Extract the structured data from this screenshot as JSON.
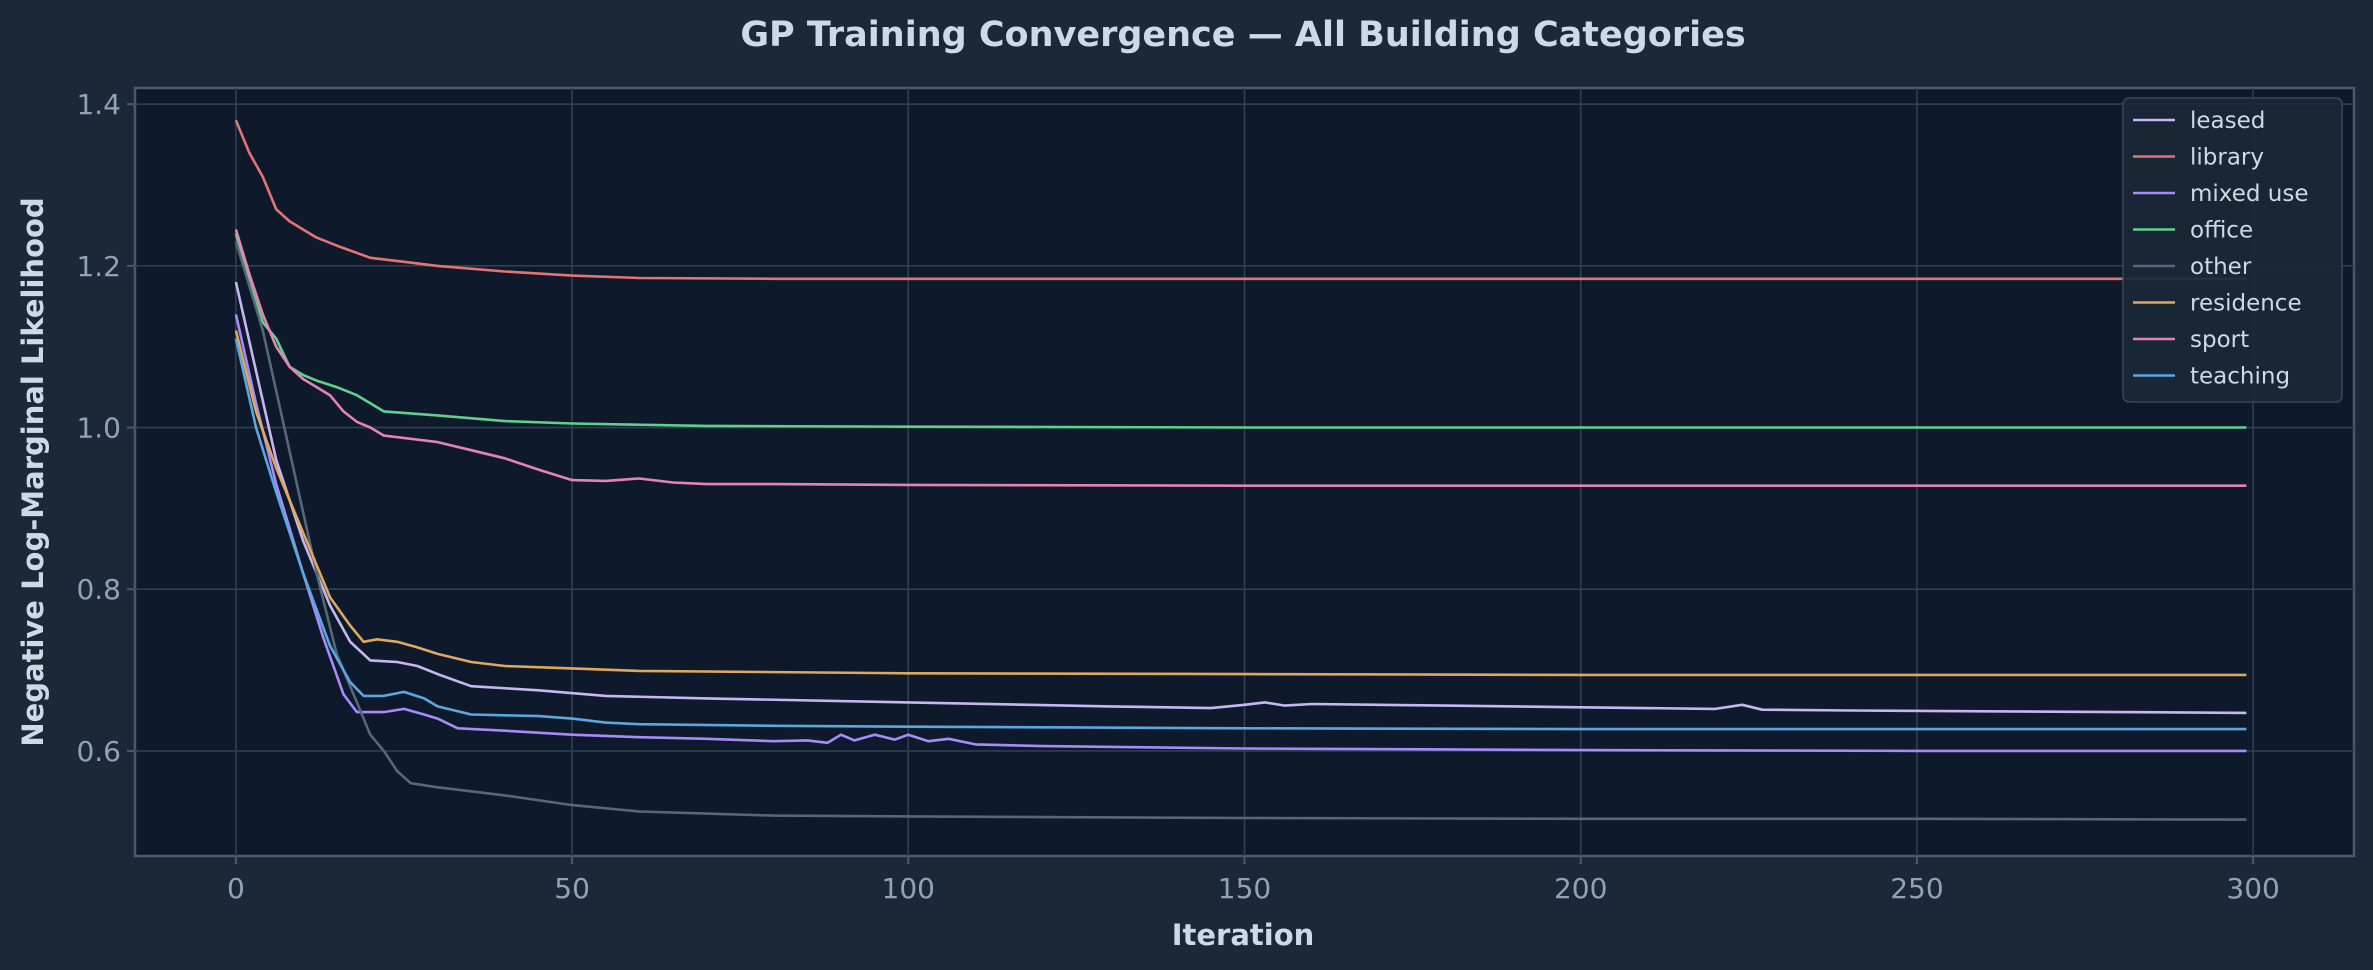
{
  "chart_data": {
    "type": "line",
    "title": "GP Training Convergence — All Building Categories",
    "xlabel": "Iteration",
    "ylabel": "Negative Log-Marginal Likelihood",
    "xlim": [
      -15,
      315
    ],
    "ylim": [
      0.47,
      1.42
    ],
    "xticks": [
      0,
      50,
      100,
      150,
      200,
      250,
      300
    ],
    "yticks": [
      0.6,
      0.8,
      1.0,
      1.2,
      1.4
    ],
    "xtick_labels": [
      "0",
      "50",
      "100",
      "150",
      "200",
      "250",
      "300"
    ],
    "ytick_labels": [
      "0.6",
      "0.8",
      "1.0",
      "1.2",
      "1.4"
    ],
    "grid": true,
    "legend_position": "top-right",
    "series": [
      {
        "name": "leased",
        "color": "#c6b6f2",
        "points": [
          [
            0,
            1.18
          ],
          [
            3,
            1.07
          ],
          [
            6,
            0.96
          ],
          [
            10,
            0.86
          ],
          [
            14,
            0.78
          ],
          [
            17,
            0.735
          ],
          [
            20,
            0.712
          ],
          [
            24,
            0.71
          ],
          [
            27,
            0.705
          ],
          [
            30,
            0.695
          ],
          [
            35,
            0.68
          ],
          [
            45,
            0.675
          ],
          [
            55,
            0.668
          ],
          [
            70,
            0.665
          ],
          [
            100,
            0.66
          ],
          [
            130,
            0.655
          ],
          [
            145,
            0.653
          ],
          [
            150,
            0.657
          ],
          [
            153,
            0.66
          ],
          [
            156,
            0.656
          ],
          [
            160,
            0.658
          ],
          [
            170,
            0.657
          ],
          [
            180,
            0.656
          ],
          [
            200,
            0.654
          ],
          [
            220,
            0.652
          ],
          [
            224,
            0.657
          ],
          [
            227,
            0.651
          ],
          [
            240,
            0.65
          ],
          [
            260,
            0.649
          ],
          [
            280,
            0.648
          ],
          [
            299,
            0.647
          ]
        ]
      },
      {
        "name": "library",
        "color": "#e57373",
        "points": [
          [
            0,
            1.38
          ],
          [
            2,
            1.34
          ],
          [
            4,
            1.31
          ],
          [
            6,
            1.27
          ],
          [
            8,
            1.255
          ],
          [
            10,
            1.245
          ],
          [
            12,
            1.235
          ],
          [
            15,
            1.225
          ],
          [
            20,
            1.21
          ],
          [
            25,
            1.205
          ],
          [
            30,
            1.2
          ],
          [
            40,
            1.193
          ],
          [
            50,
            1.188
          ],
          [
            60,
            1.185
          ],
          [
            80,
            1.184
          ],
          [
            100,
            1.184
          ],
          [
            150,
            1.184
          ],
          [
            200,
            1.184
          ],
          [
            250,
            1.184
          ],
          [
            299,
            1.184
          ]
        ]
      },
      {
        "name": "mixed use",
        "color": "#a78bfa",
        "points": [
          [
            0,
            1.14
          ],
          [
            3,
            1.03
          ],
          [
            6,
            0.93
          ],
          [
            10,
            0.82
          ],
          [
            13,
            0.74
          ],
          [
            16,
            0.67
          ],
          [
            18,
            0.648
          ],
          [
            22,
            0.648
          ],
          [
            25,
            0.652
          ],
          [
            28,
            0.645
          ],
          [
            30,
            0.64
          ],
          [
            33,
            0.628
          ],
          [
            40,
            0.625
          ],
          [
            50,
            0.62
          ],
          [
            60,
            0.617
          ],
          [
            70,
            0.615
          ],
          [
            80,
            0.612
          ],
          [
            85,
            0.613
          ],
          [
            88,
            0.61
          ],
          [
            90,
            0.62
          ],
          [
            92,
            0.613
          ],
          [
            95,
            0.62
          ],
          [
            98,
            0.614
          ],
          [
            100,
            0.62
          ],
          [
            103,
            0.612
          ],
          [
            106,
            0.615
          ],
          [
            110,
            0.608
          ],
          [
            120,
            0.606
          ],
          [
            150,
            0.603
          ],
          [
            200,
            0.601
          ],
          [
            250,
            0.6
          ],
          [
            299,
            0.6
          ]
        ]
      },
      {
        "name": "office",
        "color": "#5fd18b",
        "points": [
          [
            0,
            1.24
          ],
          [
            2,
            1.18
          ],
          [
            4,
            1.13
          ],
          [
            6,
            1.11
          ],
          [
            8,
            1.075
          ],
          [
            10,
            1.065
          ],
          [
            12,
            1.058
          ],
          [
            15,
            1.05
          ],
          [
            18,
            1.04
          ],
          [
            20,
            1.03
          ],
          [
            22,
            1.02
          ],
          [
            30,
            1.015
          ],
          [
            40,
            1.008
          ],
          [
            50,
            1.005
          ],
          [
            70,
            1.002
          ],
          [
            100,
            1.001
          ],
          [
            150,
            1.0
          ],
          [
            200,
            1.0
          ],
          [
            299,
            1.0
          ]
        ]
      },
      {
        "name": "other",
        "color": "#566778",
        "points": [
          [
            0,
            1.23
          ],
          [
            4,
            1.12
          ],
          [
            8,
            0.97
          ],
          [
            12,
            0.82
          ],
          [
            15,
            0.72
          ],
          [
            18,
            0.66
          ],
          [
            20,
            0.62
          ],
          [
            22,
            0.6
          ],
          [
            24,
            0.575
          ],
          [
            26,
            0.56
          ],
          [
            30,
            0.555
          ],
          [
            35,
            0.55
          ],
          [
            40,
            0.545
          ],
          [
            50,
            0.533
          ],
          [
            60,
            0.525
          ],
          [
            80,
            0.52
          ],
          [
            100,
            0.519
          ],
          [
            150,
            0.517
          ],
          [
            200,
            0.516
          ],
          [
            250,
            0.516
          ],
          [
            299,
            0.515
          ]
        ]
      },
      {
        "name": "residence",
        "color": "#e0a85c",
        "points": [
          [
            0,
            1.12
          ],
          [
            3,
            1.02
          ],
          [
            6,
            0.95
          ],
          [
            10,
            0.87
          ],
          [
            14,
            0.79
          ],
          [
            17,
            0.755
          ],
          [
            19,
            0.735
          ],
          [
            21,
            0.738
          ],
          [
            24,
            0.735
          ],
          [
            27,
            0.728
          ],
          [
            30,
            0.72
          ],
          [
            35,
            0.71
          ],
          [
            40,
            0.705
          ],
          [
            50,
            0.702
          ],
          [
            60,
            0.699
          ],
          [
            100,
            0.696
          ],
          [
            150,
            0.695
          ],
          [
            200,
            0.694
          ],
          [
            250,
            0.694
          ],
          [
            299,
            0.694
          ]
        ]
      },
      {
        "name": "sport",
        "color": "#e583b1",
        "points": [
          [
            0,
            1.245
          ],
          [
            2,
            1.19
          ],
          [
            4,
            1.14
          ],
          [
            6,
            1.1
          ],
          [
            8,
            1.075
          ],
          [
            10,
            1.06
          ],
          [
            12,
            1.05
          ],
          [
            14,
            1.04
          ],
          [
            16,
            1.02
          ],
          [
            18,
            1.007
          ],
          [
            20,
            1.0
          ],
          [
            22,
            0.99
          ],
          [
            25,
            0.987
          ],
          [
            30,
            0.982
          ],
          [
            35,
            0.972
          ],
          [
            40,
            0.962
          ],
          [
            45,
            0.948
          ],
          [
            50,
            0.935
          ],
          [
            55,
            0.934
          ],
          [
            60,
            0.937
          ],
          [
            65,
            0.932
          ],
          [
            70,
            0.93
          ],
          [
            80,
            0.93
          ],
          [
            100,
            0.929
          ],
          [
            150,
            0.928
          ],
          [
            200,
            0.928
          ],
          [
            250,
            0.928
          ],
          [
            299,
            0.928
          ]
        ]
      },
      {
        "name": "teaching",
        "color": "#5ba7e0",
        "points": [
          [
            0,
            1.11
          ],
          [
            3,
            1.0
          ],
          [
            6,
            0.92
          ],
          [
            10,
            0.82
          ],
          [
            14,
            0.73
          ],
          [
            17,
            0.685
          ],
          [
            19,
            0.668
          ],
          [
            22,
            0.668
          ],
          [
            25,
            0.673
          ],
          [
            28,
            0.665
          ],
          [
            30,
            0.655
          ],
          [
            35,
            0.645
          ],
          [
            45,
            0.643
          ],
          [
            50,
            0.64
          ],
          [
            55,
            0.635
          ],
          [
            60,
            0.633
          ],
          [
            80,
            0.631
          ],
          [
            100,
            0.63
          ],
          [
            150,
            0.628
          ],
          [
            200,
            0.627
          ],
          [
            299,
            0.627
          ]
        ]
      }
    ]
  }
}
